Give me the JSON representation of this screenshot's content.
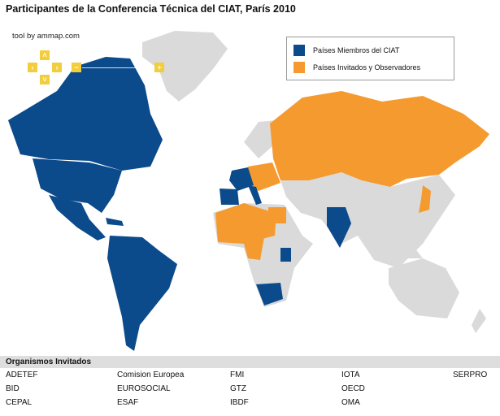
{
  "title": "Participantes de la Conferencia Técnica del CIAT, París 2010",
  "credit": "tool by ammap.com",
  "controls": {
    "up": "˄",
    "down": "˅",
    "left": "‹",
    "right": "›",
    "zoom_out": "−",
    "zoom_in": "+"
  },
  "colors": {
    "member": "#0b4a8b",
    "invited": "#f59a2f",
    "other": "#dadada",
    "controls": "#f2cd3c"
  },
  "legend": [
    {
      "label": "Países Miembros del CIAT",
      "color": "#0b4a8b"
    },
    {
      "label": "Países Invitados y Observadores",
      "color": "#f59a2f"
    }
  ],
  "organizations": {
    "heading": "Organismos Invitados",
    "columns": [
      [
        "ADETEF",
        "BID",
        "CEPAL"
      ],
      [
        "Comision Europea",
        "EUROSOCIAL",
        "ESAF"
      ],
      [
        "FMI",
        "GTZ",
        "IBDF"
      ],
      [
        "IOTA",
        "OECD",
        "OMA"
      ],
      [
        "SERPRO"
      ]
    ]
  }
}
